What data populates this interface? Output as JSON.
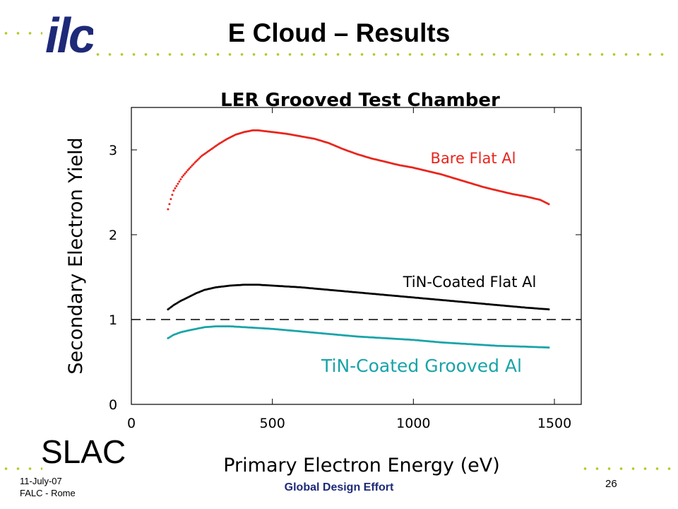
{
  "slide": {
    "title": "E Cloud – Results",
    "logo_text": "ilc",
    "lab_label": "SLAC",
    "footer": {
      "date": "11-July-07",
      "location": "FALC - Rome",
      "center": "Global Design Effort",
      "page": "26"
    },
    "colors": {
      "accent_dots": "#b6c92a",
      "logo": "#1e2a78",
      "footer_text": "#1e2a78"
    }
  },
  "chart_data": {
    "type": "scatter",
    "title": "LER Grooved Test Chamber",
    "xlabel": "Primary Electron Energy (eV)",
    "ylabel": "Secondary Electron Yield",
    "xlim": [
      0,
      1600
    ],
    "ylim": [
      0,
      3.5
    ],
    "xticks": [
      "0",
      "500",
      "1000",
      "1500"
    ],
    "yticks": [
      "0",
      "1",
      "2",
      "3"
    ],
    "reference_line": {
      "y": 1,
      "style": "dashed"
    },
    "grid": false,
    "series": [
      {
        "name": "Bare Flat Al",
        "color": "#e8241c",
        "x": [
          130,
          140,
          150,
          165,
          180,
          200,
          225,
          250,
          280,
          310,
          340,
          370,
          400,
          430,
          450,
          500,
          550,
          600,
          650,
          700,
          750,
          800,
          850,
          900,
          950,
          1000,
          1050,
          1100,
          1150,
          1200,
          1250,
          1300,
          1350,
          1400,
          1450,
          1480
        ],
        "y": [
          2.3,
          2.42,
          2.52,
          2.6,
          2.68,
          2.76,
          2.85,
          2.93,
          3.0,
          3.07,
          3.13,
          3.18,
          3.21,
          3.23,
          3.23,
          3.21,
          3.19,
          3.16,
          3.13,
          3.08,
          3.01,
          2.95,
          2.9,
          2.86,
          2.82,
          2.79,
          2.75,
          2.71,
          2.66,
          2.61,
          2.56,
          2.52,
          2.48,
          2.45,
          2.41,
          2.36
        ]
      },
      {
        "name": "TiN-Coated Flat Al",
        "color": "#000000",
        "x": [
          130,
          150,
          175,
          200,
          230,
          260,
          300,
          350,
          400,
          450,
          500,
          600,
          700,
          800,
          900,
          1000,
          1100,
          1200,
          1300,
          1400,
          1480
        ],
        "y": [
          1.12,
          1.17,
          1.22,
          1.26,
          1.31,
          1.35,
          1.38,
          1.4,
          1.41,
          1.41,
          1.4,
          1.38,
          1.35,
          1.32,
          1.29,
          1.26,
          1.23,
          1.2,
          1.17,
          1.14,
          1.12
        ]
      },
      {
        "name": "TiN-Coated Grooved Al",
        "color": "#18a4a8",
        "x": [
          130,
          150,
          175,
          200,
          230,
          260,
          300,
          350,
          400,
          450,
          500,
          600,
          700,
          800,
          900,
          1000,
          1100,
          1200,
          1300,
          1400,
          1480
        ],
        "y": [
          0.78,
          0.82,
          0.85,
          0.87,
          0.89,
          0.91,
          0.92,
          0.92,
          0.91,
          0.9,
          0.89,
          0.86,
          0.83,
          0.8,
          0.78,
          0.76,
          0.73,
          0.71,
          0.69,
          0.68,
          0.67
        ]
      }
    ]
  }
}
